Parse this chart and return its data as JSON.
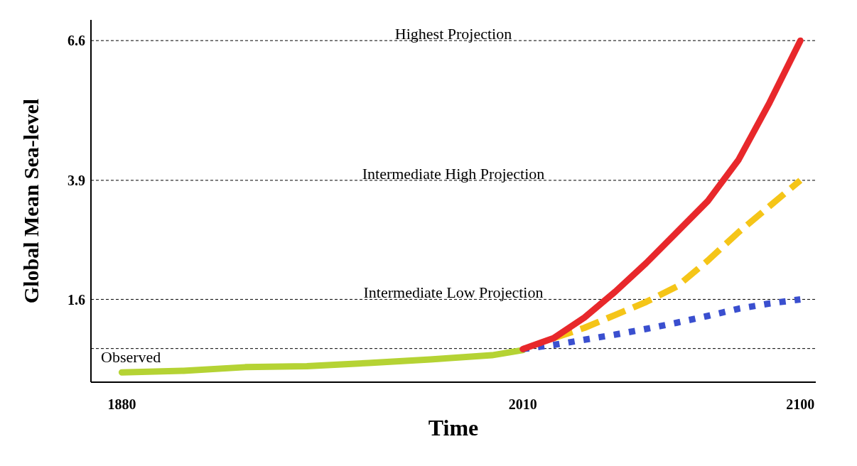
{
  "chart_data": {
    "type": "line",
    "xlabel": "Time",
    "ylabel": "Global Mean Sea-level",
    "xlim": [
      1870,
      2105
    ],
    "xticks": [
      1880,
      2010,
      2100
    ],
    "ylim": [
      0,
      7
    ],
    "yticks": [
      1.6,
      3.9,
      6.6
    ],
    "grid": false,
    "legend": false,
    "marker": "none",
    "series": [
      {
        "color": "#b5d334",
        "line_style": "solid",
        "x": [
          1880,
          1900,
          1920,
          1940,
          1960,
          1980,
          2000,
          2010
        ],
        "values": [
          0.19,
          0.22,
          0.29,
          0.31,
          0.37,
          0.44,
          0.52,
          0.62
        ]
      },
      {
        "color": "#3a4fcf",
        "line_style": "dotted",
        "x": [
          2010,
          2020,
          2030,
          2040,
          2050,
          2060,
          2070,
          2080,
          2090,
          2100
        ],
        "values": [
          0.64,
          0.72,
          0.82,
          0.92,
          1.03,
          1.15,
          1.28,
          1.42,
          1.52,
          1.6
        ]
      },
      {
        "color": "#f5c518",
        "line_style": "dashed",
        "x": [
          2020,
          2030,
          2040,
          2050,
          2060,
          2070,
          2080,
          2090,
          2100
        ],
        "values": [
          0.85,
          1.05,
          1.3,
          1.55,
          1.85,
          2.35,
          2.9,
          3.4,
          3.9
        ]
      },
      {
        "color": "#e8282b",
        "line_style": "solid",
        "x": [
          2010,
          2020,
          2030,
          2040,
          2050,
          2060,
          2070,
          2080,
          2090,
          2100
        ],
        "values": [
          0.64,
          0.85,
          1.25,
          1.75,
          2.3,
          2.9,
          3.5,
          4.3,
          5.4,
          6.6
        ]
      }
    ],
    "ref_lines": [
      {
        "axis": "y",
        "value": 6.6,
        "label": "Highest Projection",
        "color": "#000000",
        "line_style": "dashed"
      },
      {
        "axis": "y",
        "value": 3.9,
        "label": "Intermediate High Projection",
        "color": "#000000",
        "line_style": "dashed"
      },
      {
        "axis": "y",
        "value": 1.6,
        "label": "Intermediate Low Projection",
        "color": "#000000",
        "line_style": "dashed"
      },
      {
        "axis": "y",
        "value": 0.65,
        "label": "Observed",
        "color": "#000000",
        "line_style": "dashed"
      }
    ]
  }
}
